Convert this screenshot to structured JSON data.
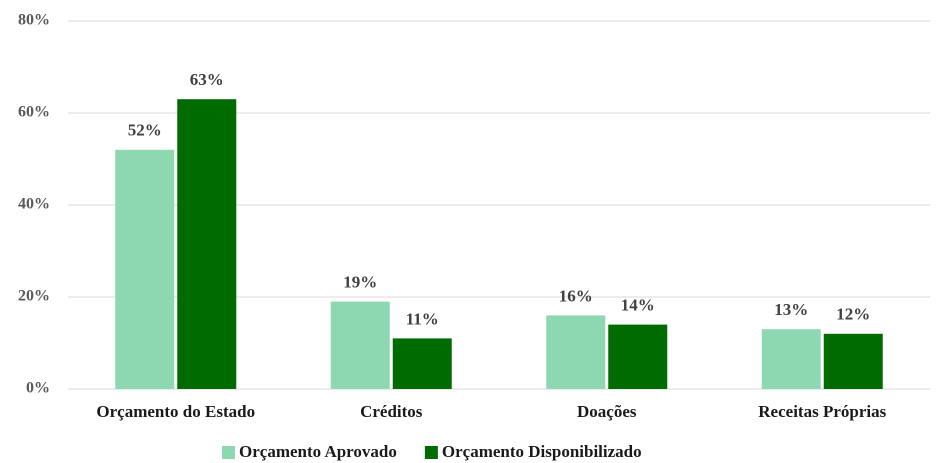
{
  "chart_data": {
    "type": "bar",
    "categories": [
      "Orçamento do Estado",
      "Créditos",
      "Doações",
      "Receitas Próprias"
    ],
    "series": [
      {
        "name": "Orçamento Aprovado",
        "color": "#8dd8b0",
        "values": [
          52,
          19,
          16,
          13
        ],
        "value_labels": [
          "52%",
          "19%",
          "16%",
          "13%"
        ]
      },
      {
        "name": "Orçamento Disponibilizado",
        "color": "#006b00",
        "values": [
          63,
          11,
          14,
          12
        ],
        "value_labels": [
          "63%",
          "11%",
          "14%",
          "12%"
        ]
      }
    ],
    "ylim": [
      0,
      80
    ],
    "yticks": [
      {
        "value": 0,
        "label": "0%"
      },
      {
        "value": 20,
        "label": "20%"
      },
      {
        "value": 40,
        "label": "40%"
      },
      {
        "value": 60,
        "label": "60%"
      },
      {
        "value": 80,
        "label": "80%"
      }
    ],
    "grid": true,
    "legend": "bottom"
  }
}
